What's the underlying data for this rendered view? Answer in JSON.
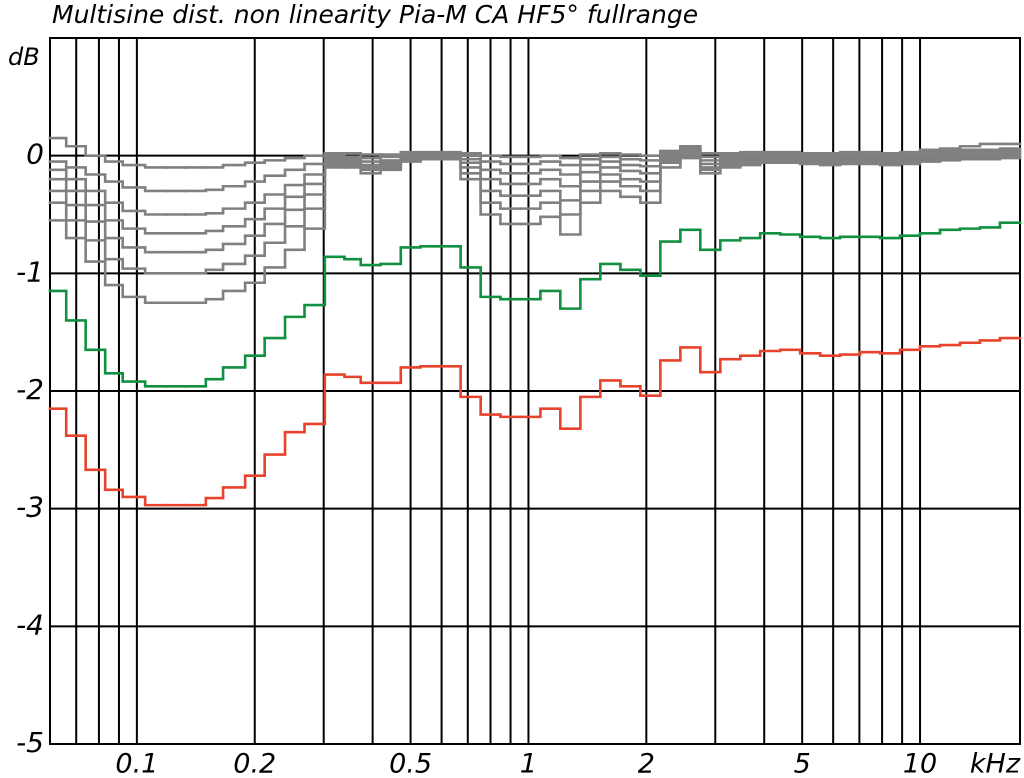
{
  "chart_data": {
    "type": "step",
    "title": "Multisine dist. non linearity Pia-M CA HF5° fullrange",
    "y_label": "dB",
    "x_label": "kHz",
    "log_x": true,
    "grid": true,
    "xlim": [
      0.06,
      18
    ],
    "ylim": [
      -5,
      1
    ],
    "xticks": [
      0.1,
      0.2,
      0.5,
      1,
      2,
      5,
      10
    ],
    "xgrid": [
      0.07,
      0.08,
      0.09,
      0.1,
      0.2,
      0.3,
      0.4,
      0.5,
      0.6,
      0.7,
      0.8,
      0.9,
      1,
      2,
      3,
      4,
      5,
      6,
      7,
      8,
      9,
      10
    ],
    "yticks": [
      0,
      -1,
      -2,
      -3,
      -4,
      -5
    ],
    "x": [
      0.06,
      0.066,
      0.074,
      0.083,
      0.092,
      0.105,
      0.119,
      0.133,
      0.15,
      0.166,
      0.189,
      0.212,
      0.239,
      0.268,
      0.302,
      0.339,
      0.373,
      0.419,
      0.472,
      0.53,
      0.597,
      0.671,
      0.755,
      0.848,
      0.954,
      1.073,
      1.206,
      1.357,
      1.526,
      1.717,
      1.931,
      2.172,
      2.443,
      2.747,
      3.09,
      3.475,
      3.907,
      4.395,
      4.942,
      5.559,
      6.251,
      7.031,
      7.907,
      8.893,
      10,
      11.25,
      12.65,
      14.22,
      16
    ],
    "series": [
      {
        "color": "#808080",
        "values": [
          -0.55,
          -0.7,
          -0.9,
          -1.1,
          -1.2,
          -1.25,
          -1.25,
          -1.25,
          -1.22,
          -1.15,
          -1.08,
          -0.95,
          -0.8,
          -0.62,
          -0.1,
          -0.1,
          -0.15,
          -0.12,
          -0.05,
          -0.03,
          -0.03,
          -0.2,
          -0.5,
          -0.58,
          -0.58,
          -0.52,
          -0.67,
          -0.4,
          -0.3,
          -0.35,
          -0.4,
          -0.1,
          -0.02,
          -0.15,
          -0.1,
          -0.08,
          -0.06,
          -0.06,
          -0.07,
          -0.08,
          -0.07,
          -0.07,
          -0.08,
          -0.07,
          -0.05,
          -0.04,
          -0.03,
          -0.03,
          -0.02
        ]
      },
      {
        "color": "#808080",
        "values": [
          -0.4,
          -0.55,
          -0.72,
          -0.88,
          -0.96,
          -1.0,
          -1.0,
          -1.0,
          -0.97,
          -0.92,
          -0.85,
          -0.74,
          -0.6,
          -0.45,
          -0.08,
          -0.08,
          -0.12,
          -0.1,
          -0.04,
          -0.03,
          -0.03,
          -0.15,
          -0.4,
          -0.45,
          -0.45,
          -0.4,
          -0.5,
          -0.3,
          -0.22,
          -0.26,
          -0.3,
          -0.06,
          0.0,
          -0.12,
          -0.08,
          -0.07,
          -0.05,
          -0.05,
          -0.06,
          -0.07,
          -0.06,
          -0.06,
          -0.07,
          -0.06,
          -0.04,
          -0.03,
          -0.02,
          -0.02,
          -0.01
        ]
      },
      {
        "color": "#808080",
        "values": [
          -0.3,
          -0.42,
          -0.56,
          -0.7,
          -0.78,
          -0.82,
          -0.82,
          -0.82,
          -0.8,
          -0.75,
          -0.68,
          -0.58,
          -0.46,
          -0.33,
          -0.06,
          -0.06,
          -0.1,
          -0.08,
          -0.03,
          -0.02,
          -0.02,
          -0.1,
          -0.3,
          -0.34,
          -0.34,
          -0.3,
          -0.38,
          -0.22,
          -0.16,
          -0.2,
          -0.22,
          -0.04,
          0.01,
          -0.1,
          -0.06,
          -0.05,
          -0.04,
          -0.04,
          -0.05,
          -0.06,
          -0.05,
          -0.05,
          -0.06,
          -0.05,
          -0.03,
          -0.02,
          -0.01,
          -0.01,
          0.0
        ]
      },
      {
        "color": "#808080",
        "values": [
          -0.2,
          -0.3,
          -0.42,
          -0.55,
          -0.62,
          -0.66,
          -0.66,
          -0.66,
          -0.64,
          -0.6,
          -0.54,
          -0.45,
          -0.35,
          -0.24,
          -0.04,
          -0.05,
          -0.08,
          -0.06,
          -0.02,
          -0.01,
          -0.01,
          -0.06,
          -0.2,
          -0.24,
          -0.24,
          -0.2,
          -0.26,
          -0.14,
          -0.1,
          -0.13,
          -0.15,
          -0.02,
          0.03,
          -0.07,
          -0.04,
          -0.03,
          -0.02,
          -0.02,
          -0.03,
          -0.04,
          -0.03,
          -0.03,
          -0.04,
          -0.03,
          -0.01,
          0.0,
          0.01,
          0.01,
          0.02
        ]
      },
      {
        "color": "#808080",
        "values": [
          -0.12,
          -0.2,
          -0.3,
          -0.4,
          -0.47,
          -0.5,
          -0.5,
          -0.5,
          -0.49,
          -0.45,
          -0.4,
          -0.33,
          -0.25,
          -0.16,
          -0.02,
          -0.03,
          -0.05,
          -0.04,
          -0.01,
          0.0,
          0.0,
          -0.03,
          -0.12,
          -0.15,
          -0.15,
          -0.12,
          -0.16,
          -0.08,
          -0.05,
          -0.08,
          -0.09,
          0.0,
          0.04,
          -0.04,
          -0.02,
          -0.01,
          0.0,
          0.0,
          -0.01,
          -0.02,
          -0.01,
          -0.01,
          -0.02,
          -0.01,
          0.01,
          0.02,
          0.03,
          0.03,
          0.04
        ]
      },
      {
        "color": "#808080",
        "values": [
          -0.05,
          -0.1,
          -0.16,
          -0.22,
          -0.27,
          -0.3,
          -0.3,
          -0.3,
          -0.29,
          -0.26,
          -0.22,
          -0.17,
          -0.12,
          -0.07,
          0.0,
          -0.01,
          -0.02,
          -0.01,
          0.01,
          0.02,
          0.02,
          0.0,
          -0.05,
          -0.07,
          -0.07,
          -0.05,
          -0.08,
          -0.03,
          -0.01,
          -0.03,
          -0.04,
          0.02,
          0.06,
          -0.01,
          0.0,
          0.01,
          0.02,
          0.02,
          0.01,
          0.0,
          0.01,
          0.01,
          0.0,
          0.01,
          0.03,
          0.04,
          0.05,
          0.05,
          0.06
        ]
      },
      {
        "color": "#808080",
        "values": [
          0.15,
          0.08,
          0.0,
          -0.05,
          -0.08,
          -0.1,
          -0.1,
          -0.1,
          -0.1,
          -0.08,
          -0.06,
          -0.04,
          -0.02,
          0.0,
          0.02,
          0.02,
          0.01,
          0.01,
          0.03,
          0.03,
          0.03,
          0.02,
          0.0,
          -0.01,
          -0.01,
          0.0,
          -0.02,
          0.01,
          0.02,
          0.01,
          0.0,
          0.04,
          0.08,
          0.02,
          0.02,
          0.03,
          0.03,
          0.03,
          0.02,
          0.02,
          0.03,
          0.03,
          0.02,
          0.03,
          0.05,
          0.06,
          0.08,
          0.1,
          0.1
        ]
      },
      {
        "color": "#109040",
        "values": [
          -1.15,
          -1.4,
          -1.65,
          -1.85,
          -1.92,
          -1.96,
          -1.96,
          -1.96,
          -1.9,
          -1.8,
          -1.7,
          -1.55,
          -1.37,
          -1.27,
          -0.86,
          -0.88,
          -0.93,
          -0.92,
          -0.78,
          -0.77,
          -0.77,
          -0.95,
          -1.2,
          -1.22,
          -1.22,
          -1.15,
          -1.3,
          -1.05,
          -0.92,
          -0.97,
          -1.02,
          -0.73,
          -0.63,
          -0.8,
          -0.72,
          -0.7,
          -0.66,
          -0.67,
          -0.69,
          -0.7,
          -0.69,
          -0.69,
          -0.7,
          -0.68,
          -0.66,
          -0.63,
          -0.62,
          -0.61,
          -0.57
        ]
      },
      {
        "color": "#e8432c",
        "values": [
          -2.15,
          -2.38,
          -2.67,
          -2.84,
          -2.9,
          -2.97,
          -2.97,
          -2.97,
          -2.91,
          -2.82,
          -2.72,
          -2.54,
          -2.35,
          -2.28,
          -1.86,
          -1.88,
          -1.93,
          -1.93,
          -1.8,
          -1.79,
          -1.79,
          -2.05,
          -2.2,
          -2.22,
          -2.22,
          -2.15,
          -2.32,
          -2.05,
          -1.91,
          -1.96,
          -2.04,
          -1.74,
          -1.63,
          -1.84,
          -1.73,
          -1.7,
          -1.66,
          -1.65,
          -1.68,
          -1.7,
          -1.69,
          -1.67,
          -1.68,
          -1.65,
          -1.62,
          -1.61,
          -1.59,
          -1.57,
          -1.55
        ]
      }
    ]
  }
}
